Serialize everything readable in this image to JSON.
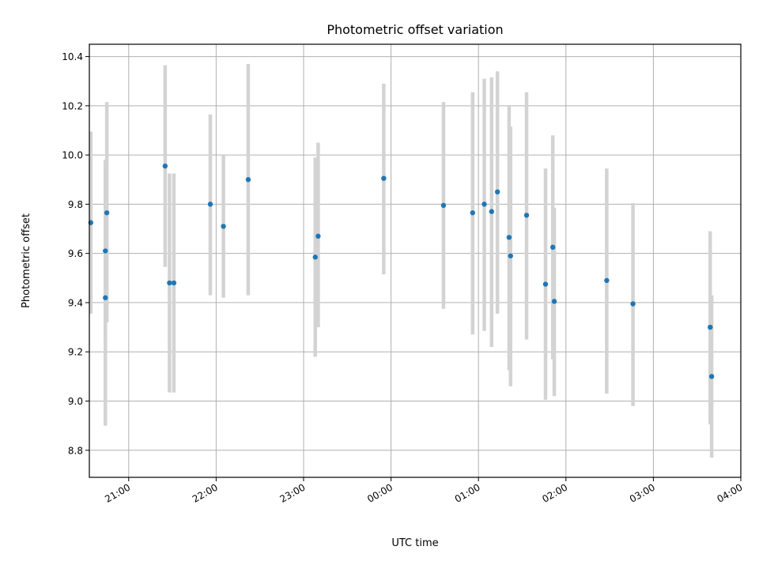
{
  "chart_data": {
    "type": "scatter",
    "title": "Photometric offset variation",
    "xlabel": "UTC time",
    "ylabel": "Photometric offset",
    "xlim": [
      "20:33",
      "04:00"
    ],
    "ylim": [
      8.69,
      10.45
    ],
    "grid": true,
    "x_ticks": [
      "21:00",
      "22:00",
      "23:00",
      "00:00",
      "01:00",
      "02:00",
      "03:00",
      "04:00"
    ],
    "y_ticks": [
      "8.8",
      "9.0",
      "9.2",
      "9.4",
      "9.6",
      "9.8",
      "10.0",
      "10.2",
      "10.4"
    ],
    "colors": {
      "marker": "#1f77b4",
      "errorbar": "#d3d3d3",
      "grid": "#b0b0b0"
    },
    "points": [
      {
        "x": "20:34",
        "y": 9.725,
        "ylow": 9.355,
        "yhigh": 10.095
      },
      {
        "x": "20:44",
        "y": 9.42,
        "ylow": 8.9,
        "yhigh": 9.93
      },
      {
        "x": "20:44",
        "y": 9.61,
        "ylow": 9.24,
        "yhigh": 9.98
      },
      {
        "x": "20:45",
        "y": 9.765,
        "ylow": 9.32,
        "yhigh": 10.215
      },
      {
        "x": "21:25",
        "y": 9.955,
        "ylow": 9.545,
        "yhigh": 10.365
      },
      {
        "x": "21:28",
        "y": 9.48,
        "ylow": 9.035,
        "yhigh": 9.925
      },
      {
        "x": "21:31",
        "y": 9.48,
        "ylow": 9.035,
        "yhigh": 9.925
      },
      {
        "x": "21:56",
        "y": 9.8,
        "ylow": 9.43,
        "yhigh": 10.165
      },
      {
        "x": "22:05",
        "y": 9.71,
        "ylow": 9.42,
        "yhigh": 10.0
      },
      {
        "x": "22:22",
        "y": 9.9,
        "ylow": 9.43,
        "yhigh": 10.37
      },
      {
        "x": "23:08",
        "y": 9.585,
        "ylow": 9.18,
        "yhigh": 9.99
      },
      {
        "x": "23:10",
        "y": 9.67,
        "ylow": 9.3,
        "yhigh": 10.05
      },
      {
        "x": "23:55",
        "y": 9.905,
        "ylow": 9.515,
        "yhigh": 10.29
      },
      {
        "x": "00:36",
        "y": 9.795,
        "ylow": 9.375,
        "yhigh": 10.215
      },
      {
        "x": "00:56",
        "y": 9.765,
        "ylow": 9.27,
        "yhigh": 10.255
      },
      {
        "x": "01:04",
        "y": 9.8,
        "ylow": 9.285,
        "yhigh": 10.31
      },
      {
        "x": "01:09",
        "y": 9.77,
        "ylow": 9.22,
        "yhigh": 10.315
      },
      {
        "x": "01:13",
        "y": 9.85,
        "ylow": 9.355,
        "yhigh": 10.34
      },
      {
        "x": "01:21",
        "y": 9.665,
        "ylow": 9.125,
        "yhigh": 10.2
      },
      {
        "x": "01:22",
        "y": 9.59,
        "ylow": 9.06,
        "yhigh": 10.115
      },
      {
        "x": "01:33",
        "y": 9.755,
        "ylow": 9.25,
        "yhigh": 10.255
      },
      {
        "x": "01:46",
        "y": 9.475,
        "ylow": 9.005,
        "yhigh": 9.945
      },
      {
        "x": "01:51",
        "y": 9.625,
        "ylow": 9.17,
        "yhigh": 10.08
      },
      {
        "x": "01:52",
        "y": 9.405,
        "ylow": 9.02,
        "yhigh": 9.785
      },
      {
        "x": "02:28",
        "y": 9.49,
        "ylow": 9.03,
        "yhigh": 9.945
      },
      {
        "x": "02:46",
        "y": 9.395,
        "ylow": 8.98,
        "yhigh": 9.805
      },
      {
        "x": "03:39",
        "y": 9.3,
        "ylow": 8.905,
        "yhigh": 9.69
      },
      {
        "x": "03:40",
        "y": 9.1,
        "ylow": 8.77,
        "yhigh": 9.43
      }
    ]
  }
}
